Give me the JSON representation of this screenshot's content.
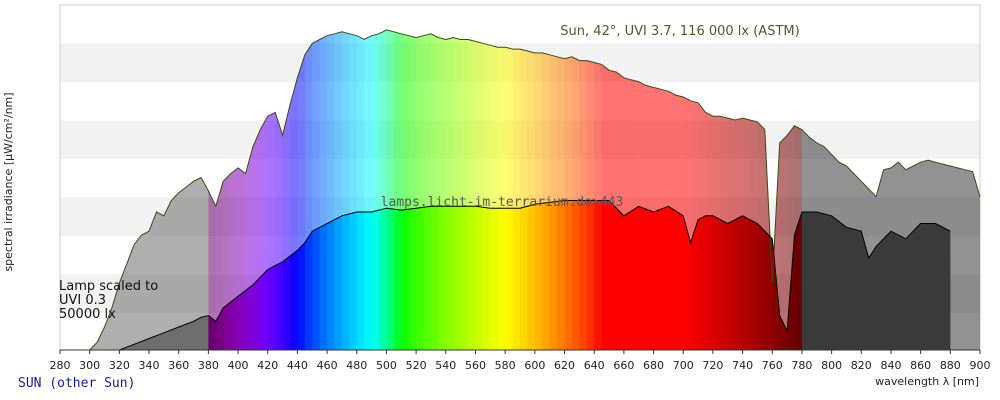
{
  "footer": {
    "link_text": "SUN (other Sun)"
  },
  "chart_data": {
    "type": "area",
    "title": "Sun, 42°, UVI 3.7, 116 000 lx (ASTM)",
    "watermark": "lamps.licht-im-terrarium.de>443",
    "xlabel": "wavelength λ [nm]",
    "ylabel": "spectral irradiance [µW/cm²/nm]",
    "xlim": [
      280,
      900
    ],
    "ylim": [
      0,
      180
    ],
    "ticks": [
      280,
      300,
      320,
      340,
      360,
      380,
      400,
      420,
      440,
      460,
      480,
      500,
      520,
      540,
      560,
      580,
      600,
      620,
      640,
      660,
      680,
      700,
      720,
      740,
      760,
      780,
      800,
      820,
      840,
      860,
      880,
      900
    ],
    "grid": "horizontal bands",
    "legend": "none",
    "series": [
      {
        "name": "Sun, 42°, UVI 3.7, 116 000 lx (ASTM)",
        "x": [
          300,
          305,
          310,
          315,
          320,
          325,
          330,
          335,
          340,
          345,
          350,
          355,
          360,
          365,
          370,
          375,
          380,
          385,
          390,
          395,
          400,
          405,
          410,
          415,
          420,
          425,
          430,
          435,
          440,
          445,
          450,
          455,
          460,
          465,
          470,
          475,
          480,
          485,
          490,
          495,
          500,
          505,
          510,
          515,
          520,
          525,
          530,
          535,
          540,
          545,
          550,
          555,
          560,
          565,
          570,
          575,
          580,
          585,
          590,
          595,
          600,
          605,
          610,
          615,
          620,
          625,
          630,
          635,
          640,
          645,
          650,
          655,
          660,
          665,
          670,
          675,
          680,
          685,
          690,
          695,
          700,
          705,
          710,
          715,
          720,
          725,
          730,
          735,
          740,
          745,
          750,
          755,
          760,
          765,
          770,
          775,
          780,
          785,
          790,
          795,
          800,
          805,
          810,
          815,
          820,
          825,
          830,
          835,
          840,
          845,
          850,
          855,
          860,
          865,
          870,
          875,
          880,
          885,
          890,
          895,
          900
        ],
        "y": [
          0,
          4,
          12,
          22,
          35,
          45,
          55,
          60,
          62,
          72,
          70,
          78,
          82,
          85,
          88,
          90,
          83,
          75,
          88,
          92,
          95,
          92,
          106,
          115,
          122,
          124,
          112,
          128,
          142,
          154,
          160,
          162,
          164,
          165,
          166,
          165,
          164,
          162,
          164,
          165,
          167,
          166,
          165,
          164,
          163,
          164,
          165,
          163,
          162,
          163,
          162,
          162,
          161,
          160,
          159,
          158,
          158,
          157,
          157,
          156,
          155,
          155,
          154,
          153,
          152,
          153,
          151,
          151,
          150,
          149,
          146,
          145,
          142,
          141,
          140,
          138,
          137,
          136,
          135,
          133,
          132,
          130,
          129,
          124,
          122,
          122,
          121,
          120,
          121,
          120,
          119,
          115,
          35,
          108,
          112,
          117,
          115,
          111,
          108,
          106,
          102,
          98,
          96,
          92,
          88,
          84,
          80,
          94,
          95,
          98,
          94,
          96,
          98,
          99,
          98,
          97,
          96,
          95,
          94,
          93,
          80
        ]
      },
      {
        "name": "Lamp scaled to UVI 0.3 50000 lx",
        "x": [
          320,
          330,
          340,
          350,
          360,
          370,
          375,
          380,
          385,
          390,
          400,
          410,
          420,
          430,
          440,
          445,
          450,
          460,
          470,
          480,
          490,
          500,
          510,
          520,
          530,
          540,
          550,
          560,
          570,
          580,
          590,
          600,
          610,
          620,
          630,
          640,
          650,
          660,
          670,
          680,
          690,
          700,
          705,
          710,
          715,
          720,
          730,
          740,
          750,
          760,
          765,
          770,
          775,
          780,
          790,
          800,
          810,
          820,
          825,
          830,
          840,
          850,
          860,
          870,
          880
        ],
        "y": [
          0,
          3,
          6,
          9,
          12,
          15,
          17,
          18,
          15,
          22,
          28,
          34,
          42,
          46,
          52,
          56,
          62,
          66,
          70,
          72,
          72,
          74,
          73,
          74,
          75,
          75,
          75,
          75,
          74,
          74,
          74,
          76,
          77,
          78,
          78,
          78,
          78,
          70,
          75,
          72,
          75,
          70,
          56,
          68,
          70,
          70,
          66,
          70,
          66,
          58,
          18,
          10,
          60,
          72,
          72,
          70,
          64,
          62,
          48,
          54,
          62,
          58,
          66,
          66,
          62
        ]
      }
    ]
  }
}
